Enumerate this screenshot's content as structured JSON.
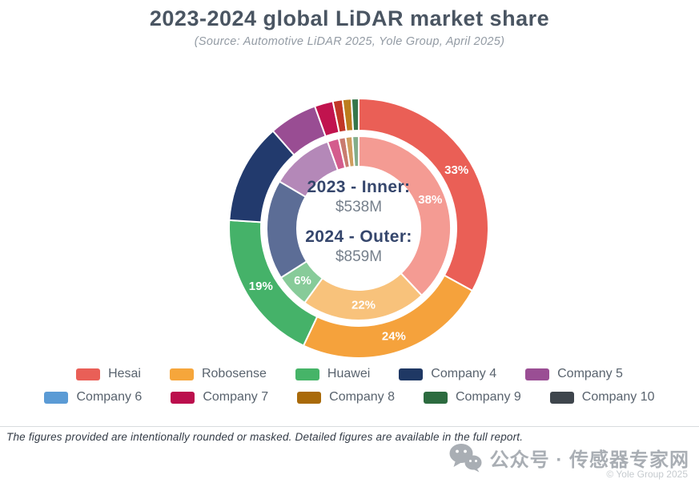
{
  "title": "2023-2024 global LiDAR market share",
  "subtitle": "(Source: Automotive LiDAR 2025, Yole Group, April 2025)",
  "center": {
    "line1": "2023 - Inner:",
    "value1": "$538M",
    "line2": "2024 - Outer:",
    "value2": "$859M"
  },
  "chart_data": {
    "type": "pie",
    "variant": "double-ring-donut",
    "title": "2023-2024 global LiDAR market share",
    "source": "(Source: Automotive LiDAR 2025, Yole Group, April 2025)",
    "legend_position": "bottom",
    "start_angle_deg": 0,
    "direction": "clockwise",
    "rings": [
      {
        "name": "2023 (inner ring)",
        "total_label": "$538M",
        "radius_inner": 77,
        "radius_outer": 115,
        "label_radius": 96,
        "slices": [
          {
            "name": "Hesai",
            "value": 38,
            "label": "38%",
            "color": "#f49b93"
          },
          {
            "name": "Robosense",
            "value": 22,
            "label": "22%",
            "color": "#f8c27b"
          },
          {
            "name": "Huawei",
            "value": 6,
            "label": "6%",
            "color": "#87cb99"
          },
          {
            "name": "Company 4",
            "value": 17.5,
            "label": "",
            "color": "#5c6d96"
          },
          {
            "name": "Company 5",
            "value": 11,
            "label": "",
            "color": "#b488b8"
          },
          {
            "name": "Company 7",
            "value": 2,
            "label": "",
            "color": "#d45c8d"
          },
          {
            "name": "Company 6",
            "value": 1.2,
            "label": "",
            "color": "#c97b6f"
          },
          {
            "name": "Company 8",
            "value": 1.2,
            "label": "",
            "color": "#cf9d5e"
          },
          {
            "name": "Company 9",
            "value": 1.1,
            "label": "",
            "color": "#83ad89"
          }
        ]
      },
      {
        "name": "2024 (outer ring)",
        "total_label": "$859M",
        "radius_inner": 122,
        "radius_outer": 162,
        "label_radius": 142,
        "slices": [
          {
            "name": "Hesai",
            "value": 33,
            "label": "33%",
            "color": "#ea5f56"
          },
          {
            "name": "Robosense",
            "value": 24,
            "label": "24%",
            "color": "#f5a23c"
          },
          {
            "name": "Huawei",
            "value": 19,
            "label": "19%",
            "color": "#45b269"
          },
          {
            "name": "Company 4",
            "value": 12.5,
            "label": "",
            "color": "#223a6d"
          },
          {
            "name": "Company 5",
            "value": 6,
            "label": "",
            "color": "#994d93"
          },
          {
            "name": "Company 7",
            "value": 2.3,
            "label": "",
            "color": "#c1134e"
          },
          {
            "name": "Company 6",
            "value": 1.2,
            "label": "",
            "color": "#c23727"
          },
          {
            "name": "Company 8",
            "value": 1.1,
            "label": "",
            "color": "#bc7d1d"
          },
          {
            "name": "Company 9",
            "value": 0.9,
            "label": "",
            "color": "#36774b"
          }
        ]
      }
    ]
  },
  "legend": {
    "items": [
      {
        "label": "Hesai",
        "color": "#e95f57"
      },
      {
        "label": "Robosense",
        "color": "#f6a63b"
      },
      {
        "label": "Huawei",
        "color": "#46b468"
      },
      {
        "label": "Company 4",
        "color": "#1f3864"
      },
      {
        "label": "Company 5",
        "color": "#9a4e94"
      },
      {
        "label": "Company 6",
        "color": "#5b9bd5"
      },
      {
        "label": "Company 7",
        "color": "#bb0f4d"
      },
      {
        "label": "Company 8",
        "color": "#a96a0a"
      },
      {
        "label": "Company 9",
        "color": "#2c6b3f"
      },
      {
        "label": "Company 10",
        "color": "#3e454c"
      }
    ]
  },
  "footer": {
    "note": "The figures provided are intentionally rounded or masked. Detailed figures are available in the full report."
  },
  "watermark": {
    "text": "公众号 · 传感器专家网",
    "copyright": "© Yole Group 2025"
  }
}
